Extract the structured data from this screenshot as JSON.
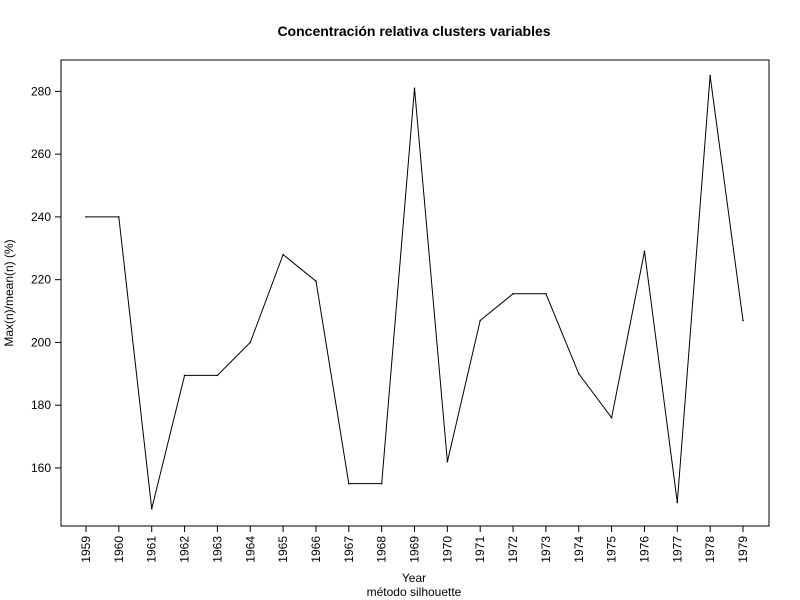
{
  "chart_data": {
    "type": "line",
    "title": "Concentración relativa clusters variables",
    "xlabel": "Year",
    "subtitle": "método silhouette",
    "ylabel": "Max(n)/mean(n) (%)",
    "categories": [
      "1959",
      "1960",
      "1961",
      "1962",
      "1963",
      "1964",
      "1965",
      "1966",
      "1967",
      "1968",
      "1969",
      "1970",
      "1971",
      "1972",
      "1973",
      "1974",
      "1975",
      "1976",
      "1977",
      "1978",
      "1979"
    ],
    "values": [
      240,
      240,
      147,
      189.5,
      189.5,
      200,
      228,
      219.5,
      155,
      155,
      281,
      162,
      207,
      215.5,
      215.5,
      190,
      176,
      229,
      149,
      285,
      207
    ],
    "yticks": [
      160,
      180,
      200,
      220,
      240,
      260,
      280
    ],
    "ylim": [
      141.5,
      290
    ],
    "line_color": "#000000",
    "grid": false,
    "legend": "none"
  }
}
